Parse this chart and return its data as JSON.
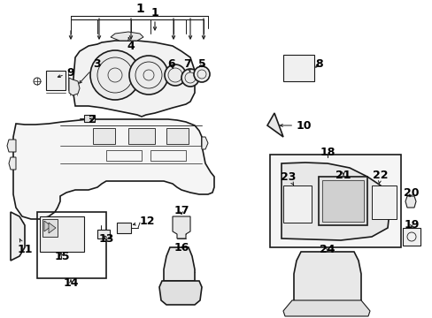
{
  "bg": "#ffffff",
  "lc": "#1a1a1a",
  "lw": 0.8,
  "fig_w": 4.89,
  "fig_h": 3.6,
  "dpi": 100,
  "label_fs": 8.5,
  "label_fs_small": 7.5
}
